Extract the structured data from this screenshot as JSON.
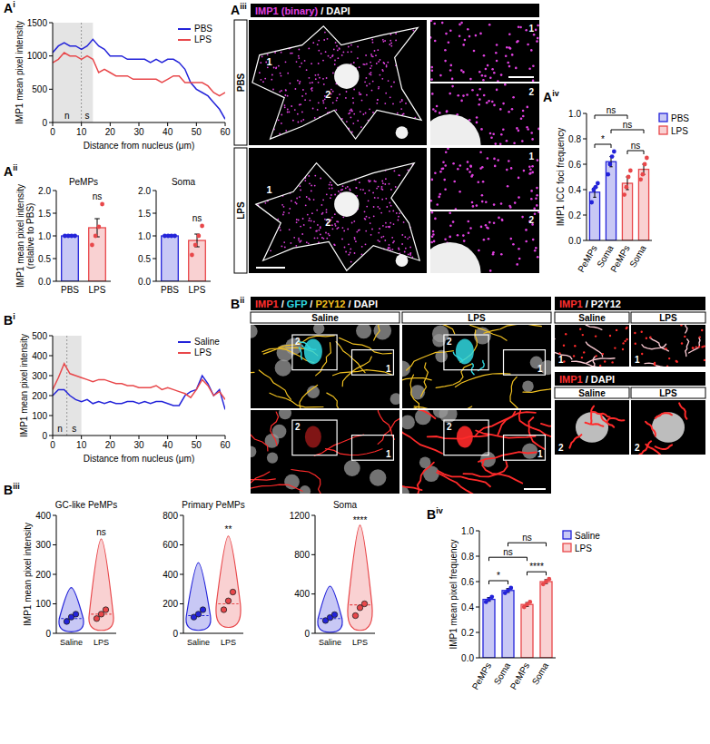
{
  "chart_data": [
    {
      "type": "line",
      "panel": "A",
      "panel_index": "i",
      "x_label": "Distance from nucleus (μm)",
      "y_label": "IMP1 mean pixel intensity",
      "x": [
        0,
        2,
        4,
        6,
        8,
        10,
        12,
        14,
        16,
        18,
        20,
        22,
        24,
        26,
        28,
        30,
        32,
        34,
        36,
        38,
        40,
        42,
        44,
        46,
        48,
        50,
        52,
        54,
        56,
        58,
        60
      ],
      "series": [
        {
          "name": "PBS",
          "color": "#2323d9",
          "values": [
            1050,
            1150,
            1200,
            1150,
            1150,
            1100,
            1150,
            1250,
            1150,
            1100,
            1000,
            1000,
            1000,
            950,
            950,
            950,
            950,
            900,
            950,
            900,
            950,
            950,
            900,
            800,
            600,
            500,
            450,
            400,
            300,
            200,
            50
          ]
        },
        {
          "name": "LPS",
          "color": "#e8474a",
          "values": [
            900,
            950,
            1050,
            1000,
            1000,
            950,
            1000,
            950,
            750,
            800,
            750,
            700,
            700,
            700,
            650,
            650,
            650,
            650,
            650,
            600,
            650,
            700,
            700,
            600,
            600,
            600,
            600,
            550,
            450,
            400,
            450
          ]
        }
      ],
      "xlim": [
        0,
        60
      ],
      "ylim": [
        0,
        1500
      ],
      "xticks": [
        0,
        10,
        20,
        30,
        40,
        50,
        60
      ],
      "yticks": [
        0,
        500,
        1000,
        1500
      ],
      "legend": "top-right",
      "shaded_regions": [
        {
          "label": "n",
          "from": 0,
          "to": 10
        },
        {
          "label": "s",
          "from": 10,
          "to": 14
        }
      ]
    },
    {
      "type": "bar",
      "panel": "A",
      "panel_index": "ii",
      "title": "PeMPs",
      "y_label": "IMP1 mean pixel intensity (relative to PBS)",
      "categories": [
        "PBS",
        "LPS"
      ],
      "colors": [
        "#2323d9",
        "#e8474a"
      ],
      "values": [
        1.0,
        1.18
      ],
      "errors": [
        0,
        0.2
      ],
      "points": [
        [
          1,
          1,
          1,
          1
        ],
        [
          0.8,
          1.0,
          1.2,
          1.7
        ]
      ],
      "significance": [
        null,
        "ns"
      ],
      "ylim": [
        0,
        2
      ],
      "yticks": [
        {
          "value": 0,
          "label": "0.0"
        },
        {
          "value": 0.5,
          "label": "0.5"
        },
        {
          "value": 1,
          "label": "1.0"
        },
        {
          "value": 1.5,
          "label": "1.5"
        },
        {
          "value": 2,
          "label": "2.0"
        }
      ]
    },
    {
      "type": "bar",
      "title": "Soma",
      "categories": [
        "PBS",
        "LPS"
      ],
      "colors": [
        "#2323d9",
        "#e8474a"
      ],
      "values": [
        1.0,
        0.9
      ],
      "errors": [
        0,
        0.14
      ],
      "points": [
        [
          1,
          1,
          1,
          1
        ],
        [
          0.58,
          0.8,
          1.0,
          1.22
        ]
      ],
      "significance": [
        null,
        "ns"
      ],
      "ylim": [
        0,
        2
      ],
      "yticks": [
        {
          "value": 0,
          "label": "0.0"
        },
        {
          "value": 0.5,
          "label": "0.5"
        },
        {
          "value": 1,
          "label": "1.0"
        },
        {
          "value": 1.5,
          "label": "1.5"
        },
        {
          "value": 2,
          "label": "2.0"
        }
      ]
    },
    {
      "type": "bar",
      "panel": "A",
      "panel_index": "iv",
      "y_label": "IMP1 ICC foci frequency",
      "categories": [
        "PeMPs",
        "Soma",
        "PeMPs",
        "Soma"
      ],
      "series": [
        {
          "name": "PBS",
          "color": "#2323d9",
          "values": [
            0.38,
            0.62,
            null,
            null
          ],
          "errors": [
            0.04,
            0.04,
            null,
            null
          ],
          "points": [
            [
              0.3,
              0.4,
              0.42,
              0.45
            ],
            [
              0.52,
              0.6,
              0.66,
              0.7
            ],
            null,
            null
          ]
        },
        {
          "name": "LPS",
          "color": "#e8474a",
          "values": [
            null,
            null,
            0.45,
            0.56
          ],
          "errors": [
            null,
            null,
            0.05,
            0.04
          ],
          "points": [
            null,
            null,
            [
              0.36,
              0.42,
              0.5,
              0.55
            ],
            [
              0.48,
              0.52,
              0.6,
              0.65
            ]
          ]
        }
      ],
      "comparisons": [
        {
          "from": 0,
          "to": 1,
          "label": "*"
        },
        {
          "from": 2,
          "to": 3,
          "label": "ns"
        },
        {
          "from": 1,
          "to": 3,
          "label": "ns"
        },
        {
          "from": 0,
          "to": 2,
          "label": "ns"
        }
      ],
      "ylim": [
        0,
        1
      ],
      "yticks": [
        {
          "value": 0,
          "label": "0.0"
        },
        {
          "value": 0.2,
          "label": "0.2"
        },
        {
          "value": 0.4,
          "label": "0.4"
        },
        {
          "value": 0.6,
          "label": "0.6"
        },
        {
          "value": 0.8,
          "label": "0.8"
        },
        {
          "value": 1,
          "label": "1.0"
        }
      ],
      "legend": "right"
    },
    {
      "type": "line",
      "panel": "B",
      "panel_index": "i",
      "x_label": "Distance from nucleus (μm)",
      "y_label": "IMP1 mean pixel intensity",
      "x": [
        0,
        2,
        4,
        6,
        8,
        10,
        12,
        14,
        16,
        18,
        20,
        22,
        24,
        26,
        28,
        30,
        32,
        34,
        36,
        38,
        40,
        42,
        44,
        46,
        48,
        50,
        52,
        54,
        56,
        58,
        60
      ],
      "series": [
        {
          "name": "Saline",
          "color": "#2323d9",
          "values": [
            200,
            230,
            230,
            200,
            180,
            170,
            180,
            160,
            170,
            160,
            170,
            160,
            160,
            170,
            170,
            160,
            170,
            160,
            170,
            170,
            160,
            150,
            150,
            200,
            220,
            230,
            300,
            260,
            200,
            230,
            130
          ]
        },
        {
          "name": "LPS",
          "color": "#e8474a",
          "values": [
            230,
            290,
            360,
            310,
            300,
            290,
            280,
            270,
            280,
            280,
            270,
            260,
            260,
            250,
            250,
            240,
            240,
            240,
            250,
            230,
            240,
            230,
            220,
            210,
            190,
            230,
            280,
            250,
            200,
            220,
            180
          ]
        }
      ],
      "xlim": [
        0,
        60
      ],
      "ylim": [
        0,
        500
      ],
      "xticks": [
        0,
        10,
        20,
        30,
        40,
        50,
        60
      ],
      "yticks": [
        0,
        100,
        200,
        300,
        400,
        500
      ],
      "legend": "top-right",
      "shaded_regions": [
        {
          "label": "n",
          "from": 0,
          "to": 5
        },
        {
          "label": "s",
          "from": 5,
          "to": 10
        }
      ]
    },
    {
      "type": "violin",
      "panel": "B",
      "panel_index": "iii",
      "title": "GC-like PeMPs",
      "y_label": "IMP1 mean pixel intensity",
      "categories": [
        "Saline",
        "LPS"
      ],
      "colors": [
        "#2323d9",
        "#e8474a"
      ],
      "min": [
        5,
        10
      ],
      "median": [
        50,
        65
      ],
      "max": [
        155,
        320
      ],
      "points": [
        [
          40,
          55,
          65
        ],
        [
          50,
          65,
          80
        ]
      ],
      "significance": [
        null,
        "ns"
      ],
      "ylim": [
        0,
        400
      ],
      "yticks": [
        0,
        100,
        200,
        300,
        400
      ]
    },
    {
      "type": "violin",
      "title": "Primary PeMPs",
      "categories": [
        "Saline",
        "LPS"
      ],
      "colors": [
        "#2323d9",
        "#e8474a"
      ],
      "min": [
        20,
        40
      ],
      "median": [
        120,
        200
      ],
      "max": [
        480,
        660
      ],
      "points": [
        [
          110,
          130,
          160
        ],
        [
          160,
          220,
          280
        ]
      ],
      "significance": [
        null,
        "**"
      ],
      "ylim": [
        0,
        800
      ],
      "yticks": [
        0,
        200,
        400,
        600,
        800
      ]
    },
    {
      "type": "violin",
      "title": "Soma",
      "categories": [
        "Saline",
        "LPS"
      ],
      "colors": [
        "#2323d9",
        "#e8474a"
      ],
      "min": [
        10,
        30
      ],
      "median": [
        150,
        290
      ],
      "max": [
        480,
        1100
      ],
      "points": [
        [
          130,
          160,
          190
        ],
        [
          180,
          260,
          300
        ]
      ],
      "significance": [
        null,
        "****"
      ],
      "ylim": [
        0,
        1200
      ],
      "yticks": [
        0,
        400,
        800,
        1200
      ]
    },
    {
      "type": "bar",
      "panel": "B",
      "panel_index": "iv",
      "y_label": "IMP1 mean pixel frequency",
      "categories": [
        "PeMPs",
        "Soma",
        "PeMPs",
        "Soma"
      ],
      "series": [
        {
          "name": "Saline",
          "color": "#2323d9",
          "values": [
            0.46,
            0.53,
            null,
            null
          ],
          "errors": [
            0.015,
            0.015,
            null,
            null
          ],
          "points": [
            [
              0.44,
              0.46,
              0.48
            ],
            [
              0.51,
              0.53,
              0.55
            ],
            null,
            null
          ]
        },
        {
          "name": "LPS",
          "color": "#e8474a",
          "values": [
            null,
            null,
            0.42,
            0.6
          ],
          "errors": [
            null,
            null,
            0.015,
            0.015
          ],
          "points": [
            null,
            null,
            [
              0.4,
              0.42,
              0.44
            ],
            [
              0.58,
              0.6,
              0.62
            ]
          ]
        }
      ],
      "comparisons": [
        {
          "from": 0,
          "to": 1,
          "label": "*"
        },
        {
          "from": 2,
          "to": 3,
          "label": "****"
        },
        {
          "from": 0,
          "to": 2,
          "label": "ns"
        },
        {
          "from": 1,
          "to": 3,
          "label": "ns"
        }
      ],
      "ylim": [
        0,
        1
      ],
      "yticks": [
        {
          "value": 0,
          "label": "0.0"
        },
        {
          "value": 0.2,
          "label": "0.2"
        },
        {
          "value": 0.4,
          "label": "0.4"
        },
        {
          "value": 0.6,
          "label": "0.6"
        },
        {
          "value": 0.8,
          "label": "0.8"
        },
        {
          "value": 1,
          "label": "1.0"
        }
      ],
      "legend": "right"
    }
  ],
  "image_panels": [
    {
      "panel": "A",
      "panel_index": "iii",
      "header": [
        {
          "text": "IMP1 (binary)",
          "color": "#e040e0"
        },
        {
          "text": " / ",
          "color": "#ffffff"
        },
        {
          "text": "DAPI",
          "color": "#ffffff"
        }
      ],
      "rows": [
        "PBS",
        "LPS"
      ],
      "regions": [
        "1",
        "2"
      ]
    },
    {
      "panel": "B",
      "panel_index": "ii",
      "header": [
        {
          "text": "IMP1",
          "color": "#ff3030"
        },
        {
          "text": " / ",
          "color": "#ffffff"
        },
        {
          "text": "GFP",
          "color": "#30d8e0"
        },
        {
          "text": " / ",
          "color": "#ffffff"
        },
        {
          "text": "P2Y12",
          "color": "#f0c020"
        },
        {
          "text": " / ",
          "color": "#ffffff"
        },
        {
          "text": "DAPI",
          "color": "#ffffff"
        }
      ],
      "columns": [
        "Saline",
        "LPS"
      ],
      "regions": [
        "1",
        "2"
      ],
      "insets": [
        {
          "header": [
            {
              "text": "IMP1",
              "color": "#ff3030"
            },
            {
              "text": " / ",
              "color": "#ffffff"
            },
            {
              "text": "P2Y12",
              "color": "#ffffff"
            }
          ]
        },
        {
          "header": [
            {
              "text": "IMP1",
              "color": "#ff3030"
            },
            {
              "text": " / ",
              "color": "#ffffff"
            },
            {
              "text": "DAPI",
              "color": "#ffffff"
            }
          ]
        }
      ]
    }
  ]
}
